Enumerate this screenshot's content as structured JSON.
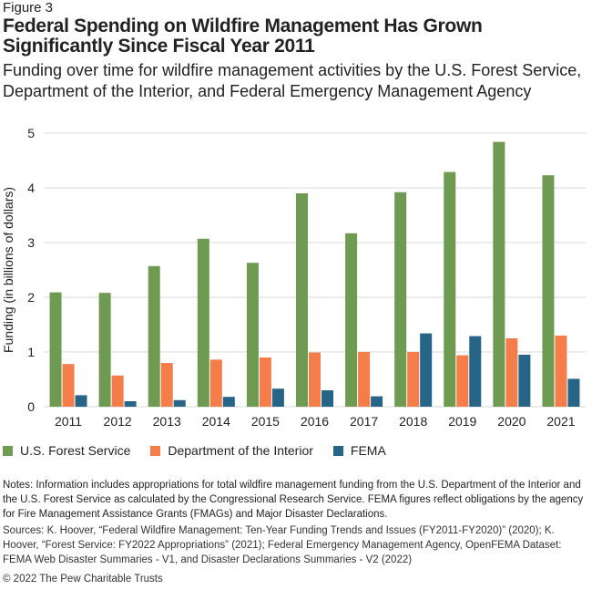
{
  "figure_label": "Figure 3",
  "title": "Federal Spending on Wildfire Management Has Grown Significantly Since Fiscal Year 2011",
  "subtitle": "Funding over time for wildfire management activities by the U.S. Forest Service, Department of the Interior, and Federal Emergency Management Agency",
  "chart_data": {
    "type": "bar",
    "title": "",
    "xlabel": "",
    "ylabel": "Funding (in billions of dollars)",
    "ylim": [
      0,
      5
    ],
    "yticks": [
      "0",
      "1",
      "2",
      "3",
      "4",
      "5"
    ],
    "grid": true,
    "legend": "bottom",
    "categories": [
      "2011",
      "2012",
      "2013",
      "2014",
      "2015",
      "2016",
      "2017",
      "2018",
      "2019",
      "2020",
      "2021"
    ],
    "series": [
      {
        "name": "U.S. Forest Service",
        "color": "#6f9a52",
        "values": [
          2.09,
          2.08,
          2.57,
          3.07,
          2.63,
          3.9,
          3.17,
          3.92,
          4.29,
          4.84,
          4.23
        ]
      },
      {
        "name": "Department of the Interior",
        "color": "#f47d4a",
        "values": [
          0.78,
          0.57,
          0.8,
          0.86,
          0.9,
          0.99,
          1.0,
          1.0,
          0.94,
          1.25,
          1.3
        ]
      },
      {
        "name": "FEMA",
        "color": "#266588",
        "values": [
          0.21,
          0.1,
          0.12,
          0.18,
          0.33,
          0.3,
          0.19,
          1.34,
          1.29,
          0.95,
          0.51
        ]
      }
    ]
  },
  "notes": "Notes: Information includes appropriations for total wildfire management funding from the U.S. Department of the Interior and the U.S. Forest Service as calculated by the Congressional Research Service. FEMA figures reflect obligations by the agency for Fire Management Assistance Grants (FMAGs) and Major Disaster Declarations.",
  "sources": "Sources: K. Hoover, “Federal Wildfire Management: Ten-Year Funding Trends and Issues (FY2011-FY2020)” (2020); K. Hoover, “Forest Service: FY2022 Appropriations” (2021); Federal Emergency Management Agency, OpenFEMA Dataset: FEMA Web Disaster Summaries - V1, and Disaster Declarations Summaries - V2 (2022)",
  "copyright": "© 2022 The Pew Charitable Trusts"
}
